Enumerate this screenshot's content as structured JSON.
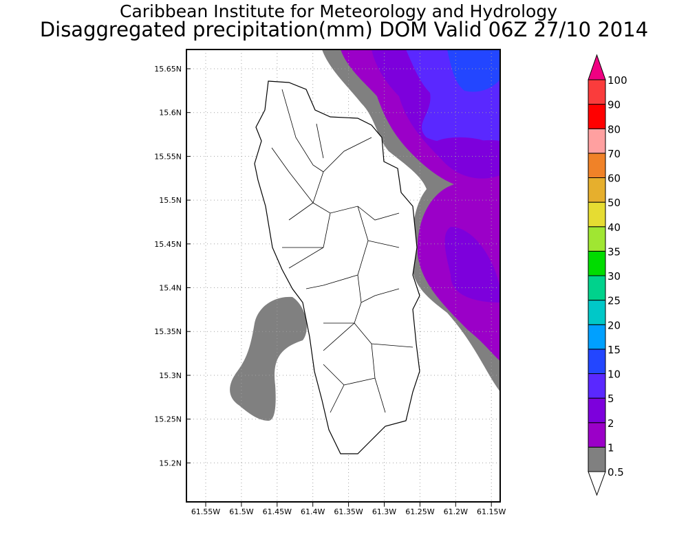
{
  "title": {
    "line1": "Caribbean Institute for Meteorology and Hydrology",
    "line2": "Disaggregated precipitation(mm) DOM Valid 06Z 27/10 2014"
  },
  "map": {
    "lat_ticks": [
      "15.65N",
      "15.6N",
      "15.55N",
      "15.5N",
      "15.45N",
      "15.4N",
      "15.35N",
      "15.3N",
      "15.25N",
      "15.2N"
    ],
    "lon_ticks": [
      "61.55W",
      "61.5W",
      "61.45W",
      "61.4W",
      "61.35W",
      "61.3W",
      "61.25W",
      "61.2W",
      "61.15W"
    ],
    "lat_range": [
      15.156,
      15.672
    ],
    "lon_range": [
      61.577,
      61.138
    ],
    "colors": {
      "land": "#ffffff",
      "outline": "#000000",
      "grid": "#a0a0a0",
      "l05": "#808080",
      "l1": "#9b00c8",
      "l2": "#7d00dc",
      "l5": "#5a28ff",
      "l10": "#2346ff"
    }
  },
  "colorbar": {
    "labels": [
      "0.5",
      "1",
      "2",
      "5",
      "10",
      "15",
      "20",
      "25",
      "30",
      "35",
      "40",
      "50",
      "60",
      "70",
      "80",
      "90",
      "100"
    ],
    "colors": [
      "#808080",
      "#9b00c8",
      "#7d00dc",
      "#5a28ff",
      "#2346ff",
      "#00a0ff",
      "#00c8c8",
      "#00d28c",
      "#00dc00",
      "#a0e632",
      "#e6dc32",
      "#e6af2d",
      "#f08228",
      "#ffa0a0",
      "#ff0000",
      "#fa3c3c",
      "#f00082"
    ],
    "under_color": "#ffffff"
  }
}
